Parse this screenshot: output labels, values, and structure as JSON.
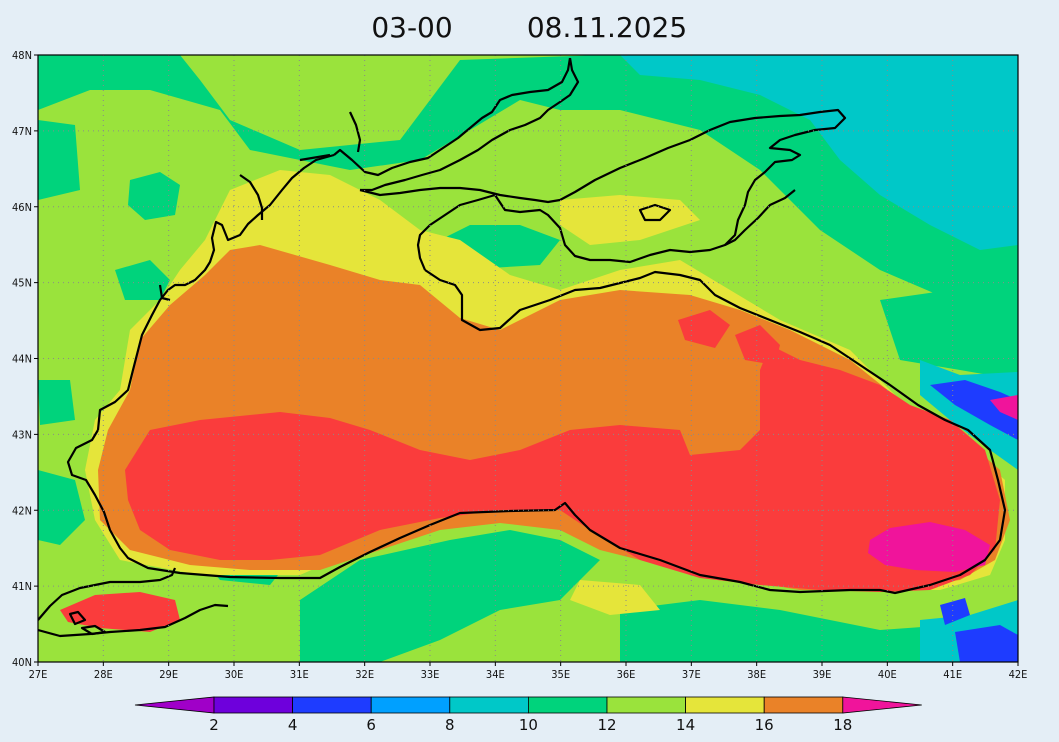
{
  "title": {
    "run": "03-00",
    "date": "08.11.2025"
  },
  "map": {
    "lon_range": [
      27,
      42
    ],
    "lat_range": [
      40,
      48
    ],
    "lon_ticks": [
      {
        "value": 27,
        "label": "27E"
      },
      {
        "value": 28,
        "label": "28E"
      },
      {
        "value": 29,
        "label": "29E"
      },
      {
        "value": 30,
        "label": "30E"
      },
      {
        "value": 31,
        "label": "31E"
      },
      {
        "value": 32,
        "label": "32E"
      },
      {
        "value": 33,
        "label": "33E"
      },
      {
        "value": 34,
        "label": "34E"
      },
      {
        "value": 35,
        "label": "35E"
      },
      {
        "value": 36,
        "label": "36E"
      },
      {
        "value": 37,
        "label": "37E"
      },
      {
        "value": 38,
        "label": "38E"
      },
      {
        "value": 39,
        "label": "39E"
      },
      {
        "value": 40,
        "label": "40E"
      },
      {
        "value": 41,
        "label": "41E"
      },
      {
        "value": 42,
        "label": "42E"
      }
    ],
    "lat_ticks": [
      {
        "value": 40,
        "label": "40N"
      },
      {
        "value": 41,
        "label": "41N"
      },
      {
        "value": 42,
        "label": "42N"
      },
      {
        "value": 43,
        "label": "43N"
      },
      {
        "value": 44,
        "label": "44N"
      },
      {
        "value": 45,
        "label": "45N"
      },
      {
        "value": 46,
        "label": "46N"
      },
      {
        "value": 47,
        "label": "47N"
      },
      {
        "value": 48,
        "label": "48N"
      }
    ],
    "field_colors": {
      "t10_12": "#9ae33c",
      "t8_10": "#00d37c",
      "t6_8": "#00c8c8",
      "t4_6": "#1e3cff",
      "t12_14": "#e5e53a",
      "t14_16": "#ea8228",
      "t16_18": "#fa3c3c",
      "t18plus": "#f0149b"
    },
    "grid_style": "dotted",
    "coastline_color": "#000000"
  },
  "colorbar": {
    "levels": [
      {
        "label": "2"
      },
      {
        "label": "4"
      },
      {
        "label": "6"
      },
      {
        "label": "8"
      },
      {
        "label": "10"
      },
      {
        "label": "12"
      },
      {
        "label": "14"
      },
      {
        "label": "16"
      },
      {
        "label": "18"
      }
    ],
    "colors": [
      "#a000c8",
      "#6e00dc",
      "#1e3cff",
      "#00a0ff",
      "#00c8c8",
      "#00d37c",
      "#9ae33c",
      "#e5e53a",
      "#ea8228",
      "#fa3c3c",
      "#f0149b"
    ]
  }
}
